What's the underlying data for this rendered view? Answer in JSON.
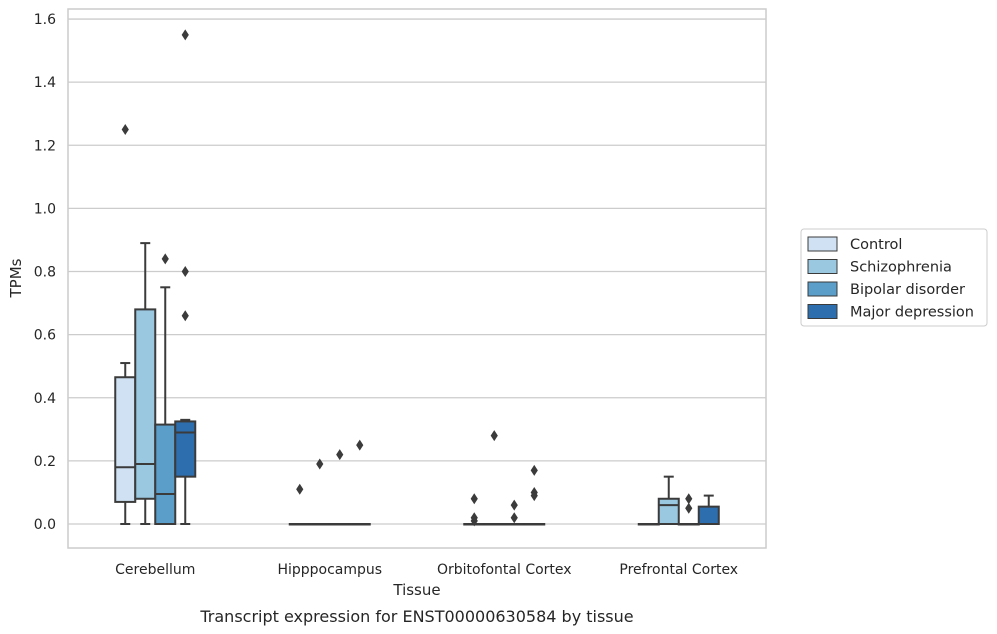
{
  "caption": "Transcript expression for ENST00000630584 by tissue",
  "chart_data": {
    "type": "box",
    "xlabel": "Tissue",
    "ylabel": "TPMs",
    "ylim": [
      -0.075,
      1.63
    ],
    "yticks": [
      0.0,
      0.2,
      0.4,
      0.6,
      0.8,
      1.0,
      1.2,
      1.4,
      1.6
    ],
    "ytick_labels": [
      "0.0",
      "0.2",
      "0.4",
      "0.6",
      "0.8",
      "1.0",
      "1.2",
      "1.4",
      "1.6"
    ],
    "grid": "horizontal",
    "legend_position": "right",
    "categories": [
      "Cerebellum",
      "Hipppocampus",
      "Orbitofontal Cortex",
      "Prefrontal Cortex"
    ],
    "series": [
      {
        "name": "Control",
        "color": "#cfe1f2",
        "boxes": [
          {
            "q1": 0.07,
            "median": 0.18,
            "q3": 0.465,
            "whisker_low": 0.0,
            "whisker_high": 0.51,
            "outliers": [
              1.25
            ]
          },
          {
            "q1": 0.0,
            "median": 0.0,
            "q3": 0.0,
            "whisker_low": 0.0,
            "whisker_high": 0.0,
            "outliers": [
              0.11
            ]
          },
          {
            "q1": 0.0,
            "median": 0.0,
            "q3": 0.0,
            "whisker_low": 0.0,
            "whisker_high": 0.0,
            "outliers": [
              0.08,
              0.02,
              0.01
            ]
          },
          {
            "q1": 0.0,
            "median": 0.0,
            "q3": 0.0,
            "whisker_low": 0.0,
            "whisker_high": 0.0,
            "outliers": []
          }
        ]
      },
      {
        "name": "Schizophrenia",
        "color": "#9ac8e0",
        "boxes": [
          {
            "q1": 0.08,
            "median": 0.19,
            "q3": 0.68,
            "whisker_low": 0.0,
            "whisker_high": 0.89,
            "outliers": []
          },
          {
            "q1": 0.0,
            "median": 0.0,
            "q3": 0.0,
            "whisker_low": 0.0,
            "whisker_high": 0.0,
            "outliers": [
              0.19
            ]
          },
          {
            "q1": 0.0,
            "median": 0.0,
            "q3": 0.0,
            "whisker_low": 0.0,
            "whisker_high": 0.0,
            "outliers": [
              0.28
            ]
          },
          {
            "q1": 0.0,
            "median": 0.06,
            "q3": 0.08,
            "whisker_low": 0.0,
            "whisker_high": 0.15,
            "outliers": []
          }
        ]
      },
      {
        "name": "Bipolar disorder",
        "color": "#5a9ec9",
        "boxes": [
          {
            "q1": 0.0,
            "median": 0.095,
            "q3": 0.315,
            "whisker_low": 0.0,
            "whisker_high": 0.75,
            "outliers": [
              0.84
            ]
          },
          {
            "q1": 0.0,
            "median": 0.0,
            "q3": 0.0,
            "whisker_low": 0.0,
            "whisker_high": 0.0,
            "outliers": [
              0.22
            ]
          },
          {
            "q1": 0.0,
            "median": 0.0,
            "q3": 0.0,
            "whisker_low": 0.0,
            "whisker_high": 0.0,
            "outliers": [
              0.06,
              0.02
            ]
          },
          {
            "q1": 0.0,
            "median": 0.0,
            "q3": 0.0,
            "whisker_low": 0.0,
            "whisker_high": 0.0,
            "outliers": [
              0.08,
              0.05
            ]
          }
        ]
      },
      {
        "name": "Major depression",
        "color": "#2d6eaf",
        "boxes": [
          {
            "q1": 0.15,
            "median": 0.29,
            "q3": 0.325,
            "whisker_low": 0.0,
            "whisker_high": 0.33,
            "outliers": [
              1.55,
              0.8,
              0.66
            ]
          },
          {
            "q1": 0.0,
            "median": 0.0,
            "q3": 0.0,
            "whisker_low": 0.0,
            "whisker_high": 0.0,
            "outliers": [
              0.25
            ]
          },
          {
            "q1": 0.0,
            "median": 0.0,
            "q3": 0.0,
            "whisker_low": 0.0,
            "whisker_high": 0.0,
            "outliers": [
              0.17,
              0.1,
              0.09
            ]
          },
          {
            "q1": 0.0,
            "median": 0.0,
            "q3": 0.055,
            "whisker_low": 0.0,
            "whisker_high": 0.09,
            "outliers": []
          }
        ]
      }
    ]
  }
}
